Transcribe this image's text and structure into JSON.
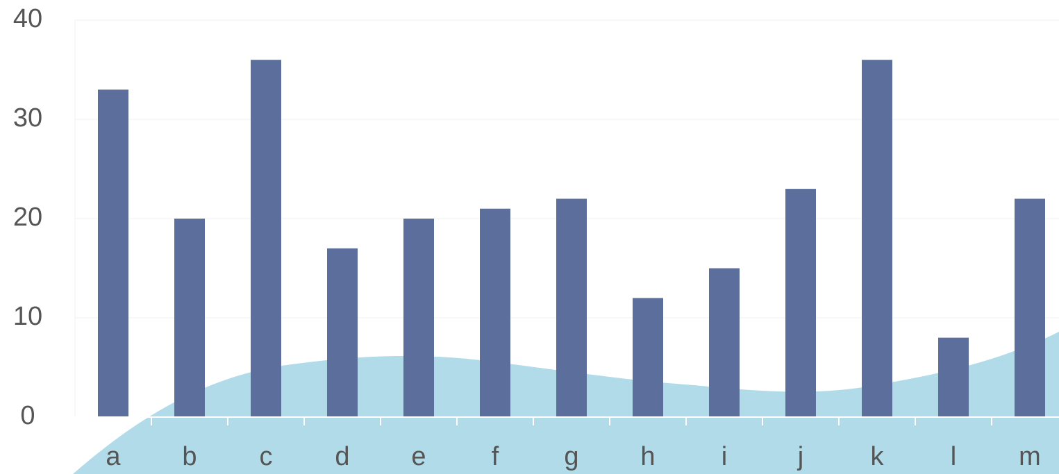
{
  "chart_data": {
    "type": "bar",
    "categories": [
      "a",
      "b",
      "c",
      "d",
      "e",
      "f",
      "g",
      "h",
      "i",
      "j",
      "k",
      "l",
      "m"
    ],
    "values": [
      33,
      20,
      36,
      17,
      20,
      21,
      22,
      12,
      15,
      23,
      36,
      8,
      22
    ],
    "color": "#5c6f9c",
    "ylim": [
      0,
      40
    ],
    "yticks": [
      0,
      10,
      20,
      30,
      40
    ],
    "grid": true
  }
}
